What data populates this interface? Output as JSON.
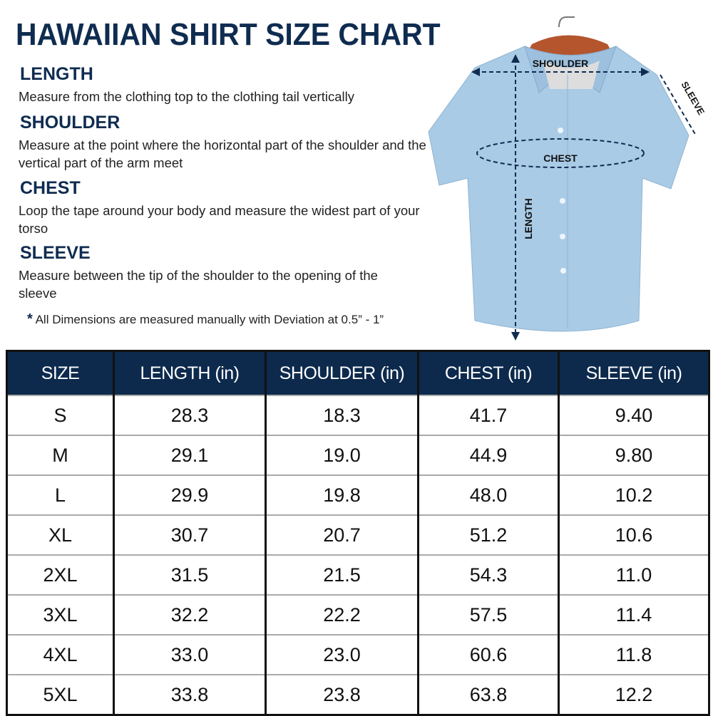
{
  "title": "HAWAIIAN SHIRT SIZE CHART",
  "sections": [
    {
      "heading": "LENGTH",
      "text": "Measure from the clothing top to the clothing tail vertically"
    },
    {
      "heading": "SHOULDER",
      "text": "Measure at the point where the horizontal part of the shoulder and the vertical part of the arm meet"
    },
    {
      "heading": "CHEST",
      "text": "Loop the tape around your body and measure the widest part of your torso"
    },
    {
      "heading": "SLEEVE",
      "text": "Measure between the tip of the shoulder to the opening of the sleeve"
    }
  ],
  "note": {
    "icon": "asterisk",
    "text": "All Dimensions are measured manually with Deviation at 0.5” - 1”"
  },
  "diagram": {
    "shoulder": "SHOULDER",
    "chest": "CHEST",
    "length": "LENGTH",
    "sleeve": "SLEEVE",
    "shirt_color": "#a9cbe6"
  },
  "table": {
    "headers": [
      "SIZE",
      "LENGTH (in)",
      "SHOULDER (in)",
      "CHEST (in)",
      "SLEEVE (in)"
    ],
    "rows": [
      [
        "S",
        "28.3",
        "18.3",
        "41.7",
        "9.40"
      ],
      [
        "M",
        "29.1",
        "19.0",
        "44.9",
        "9.80"
      ],
      [
        "L",
        "29.9",
        "19.8",
        "48.0",
        "10.2"
      ],
      [
        "XL",
        "30.7",
        "20.7",
        "51.2",
        "10.6"
      ],
      [
        "2XL",
        "31.5",
        "21.5",
        "54.3",
        "11.0"
      ],
      [
        "3XL",
        "32.2",
        "22.2",
        "57.5",
        "11.4"
      ],
      [
        "4XL",
        "33.0",
        "23.0",
        "60.6",
        "11.8"
      ],
      [
        "5XL",
        "33.8",
        "23.8",
        "63.8",
        "12.2"
      ]
    ]
  },
  "colors": {
    "navy": "#0d2a4d"
  }
}
